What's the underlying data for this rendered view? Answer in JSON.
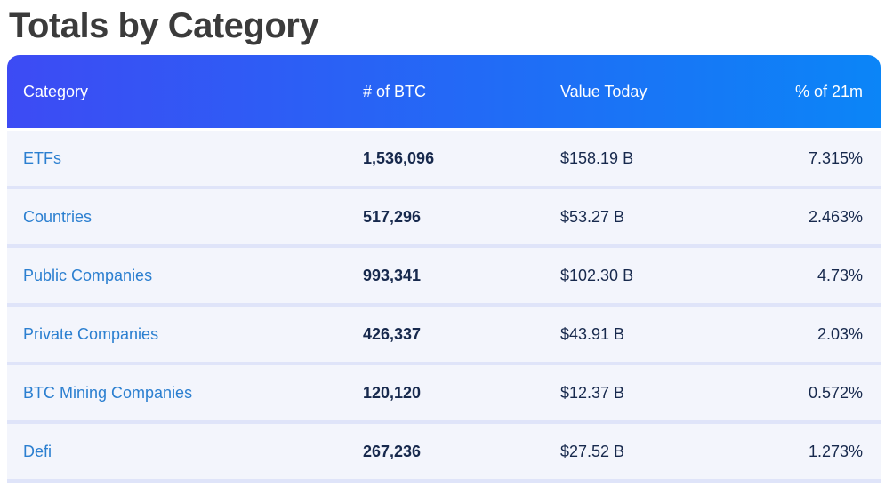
{
  "page": {
    "title": "Totals by Category"
  },
  "colors": {
    "title_color": "#3b3b3b",
    "header_gradient_start": "#3d4bf4",
    "header_gradient_end": "#0b85f7",
    "header_text": "#ffffff",
    "row_bg": "#f3f5fc",
    "divider": "#dfe4f9",
    "link_color": "#2b7fd0",
    "value_color": "#17294d"
  },
  "table": {
    "columns": [
      {
        "label": "Category",
        "align": "left"
      },
      {
        "label": "# of BTC",
        "align": "left"
      },
      {
        "label": "Value Today",
        "align": "left"
      },
      {
        "label": "% of 21m",
        "align": "right"
      }
    ],
    "rows": [
      {
        "category": "ETFs",
        "btc": "1,536,096",
        "value": "$158.19 B",
        "pct": "7.315%"
      },
      {
        "category": "Countries",
        "btc": "517,296",
        "value": "$53.27 B",
        "pct": "2.463%"
      },
      {
        "category": "Public Companies",
        "btc": "993,341",
        "value": "$102.30 B",
        "pct": "4.73%"
      },
      {
        "category": "Private Companies",
        "btc": "426,337",
        "value": "$43.91 B",
        "pct": "2.03%"
      },
      {
        "category": "BTC Mining Companies",
        "btc": "120,120",
        "value": "$12.37 B",
        "pct": "0.572%"
      },
      {
        "category": "Defi",
        "btc": "267,236",
        "value": "$27.52 B",
        "pct": "1.273%"
      }
    ]
  }
}
